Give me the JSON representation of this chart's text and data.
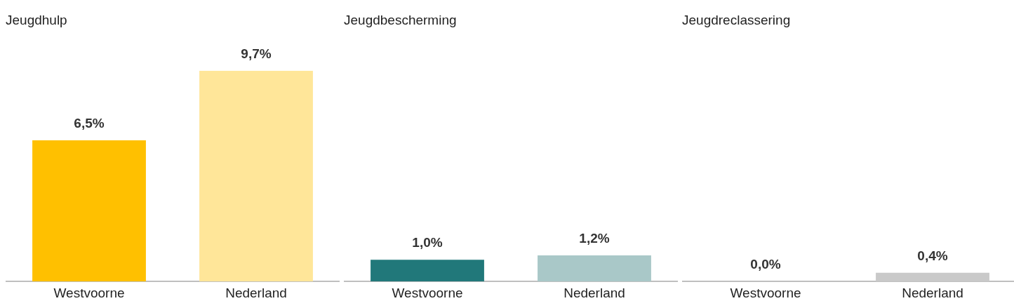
{
  "chart_data": [
    {
      "type": "bar",
      "title": "Jeugdhulp",
      "categories": [
        "Westvoorne",
        "Nederland"
      ],
      "values": [
        6.5,
        9.7
      ],
      "colors": [
        "#ffc000",
        "#ffe699"
      ],
      "value_labels": [
        "6,5%",
        "9,7%"
      ],
      "legend": false,
      "grid": false
    },
    {
      "type": "bar",
      "title": "Jeugdbescherming",
      "categories": [
        "Westvoorne",
        "Nederland"
      ],
      "values": [
        1.0,
        1.2
      ],
      "colors": [
        "#21787a",
        "#a9c8c8"
      ],
      "value_labels": [
        "1,0%",
        "1,2%"
      ],
      "legend": false,
      "grid": false
    },
    {
      "type": "bar",
      "title": "Jeugdreclassering",
      "categories": [
        "Westvoorne",
        "Nederland"
      ],
      "values": [
        0.0,
        0.4
      ],
      "colors": [
        "#a5a5a5",
        "#c9c9c9"
      ],
      "value_labels": [
        "0,0%",
        "0,4%"
      ],
      "legend": false,
      "grid": false
    }
  ]
}
